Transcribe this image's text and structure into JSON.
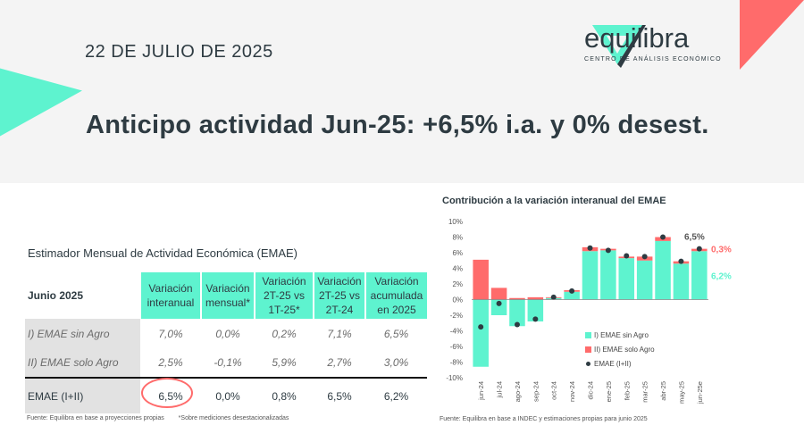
{
  "header": {
    "date": "22 DE JULIO DE 2025",
    "logo_name": "equilibra",
    "logo_sub": "CENTRO DE ANÁLISIS ECONÓMICO",
    "headline": "Anticipo actividad Jun-25: +6,5% i.a. y 0% desest.",
    "accent_color": "#5ef3cf",
    "accent_red": "#ff6b6b"
  },
  "table": {
    "title": "Estimador Mensual de Actividad Económica (EMAE)",
    "period": "Junio 2025",
    "columns": [
      [
        "Variación",
        "interanual"
      ],
      [
        "Variación",
        "mensual*"
      ],
      [
        "Variación",
        "2T-25 vs",
        "1T-25*"
      ],
      [
        "Variación",
        "2T-25 vs",
        "2T-24"
      ],
      [
        "Variación",
        "acumulada",
        "en 2025"
      ]
    ],
    "rows": [
      {
        "label": "I) EMAE sin Agro",
        "values": [
          "7,0%",
          "0,0%",
          "0,2%",
          "7,1%",
          "6,5%"
        ]
      },
      {
        "label": "II) EMAE solo Agro",
        "values": [
          "2,5%",
          "-0,1%",
          "5,9%",
          "2,7%",
          "3,0%"
        ]
      },
      {
        "label": "EMAE (I+II)",
        "values": [
          "6,5%",
          "0,0%",
          "0,8%",
          "6,5%",
          "6,2%"
        ]
      }
    ],
    "source": "Fuente: Equilibra en base a proyecciones propias",
    "note": "*Sobre mediciones desestacionalizadas"
  },
  "chart_data": {
    "type": "bar",
    "title": "Contribución a la variación interanual del EMAE",
    "categories": [
      "jun-24",
      "jul-24",
      "ago-24",
      "sep-24",
      "oct-24",
      "nov-24",
      "dic-24",
      "ene-25",
      "feb-25",
      "mar-25",
      "abr-25",
      "may-25",
      "jun-25e"
    ],
    "series": [
      {
        "name": "I) EMAE sin Agro",
        "color": "#5ef3cf",
        "values": [
          -8.6,
          -2.0,
          -3.4,
          -2.8,
          0.2,
          1.0,
          6.2,
          6.3,
          5.3,
          5.0,
          7.5,
          4.6,
          6.2
        ]
      },
      {
        "name": "II) EMAE solo Agro",
        "color": "#ff6b6b",
        "values": [
          5.1,
          1.5,
          0.2,
          0.3,
          0.1,
          0.2,
          0.5,
          0.2,
          0.2,
          0.5,
          0.5,
          0.3,
          0.3
        ]
      },
      {
        "name": "EMAE (I+II)",
        "color": "#2e3b42",
        "values": [
          -3.5,
          -0.5,
          -3.2,
          -2.5,
          0.3,
          1.1,
          6.6,
          6.3,
          5.6,
          5.5,
          8.0,
          4.9,
          6.5
        ]
      }
    ],
    "ylim": [
      -10,
      10
    ],
    "yticks": [
      "-10%",
      "-8%",
      "-6%",
      "-4%",
      "-2%",
      "0%",
      "2%",
      "4%",
      "6%",
      "8%",
      "10%"
    ],
    "annotations": {
      "total": "6,5%",
      "agro": "0,3%",
      "sin_agro": "6,2%"
    },
    "legend": [
      "I) EMAE sin Agro",
      "II) EMAE solo Agro",
      "EMAE (I+II)"
    ],
    "legend_position": "bottom-right",
    "source": "Fuente: Equilibra en base a INDEC y estimaciones propias para junio 2025"
  }
}
